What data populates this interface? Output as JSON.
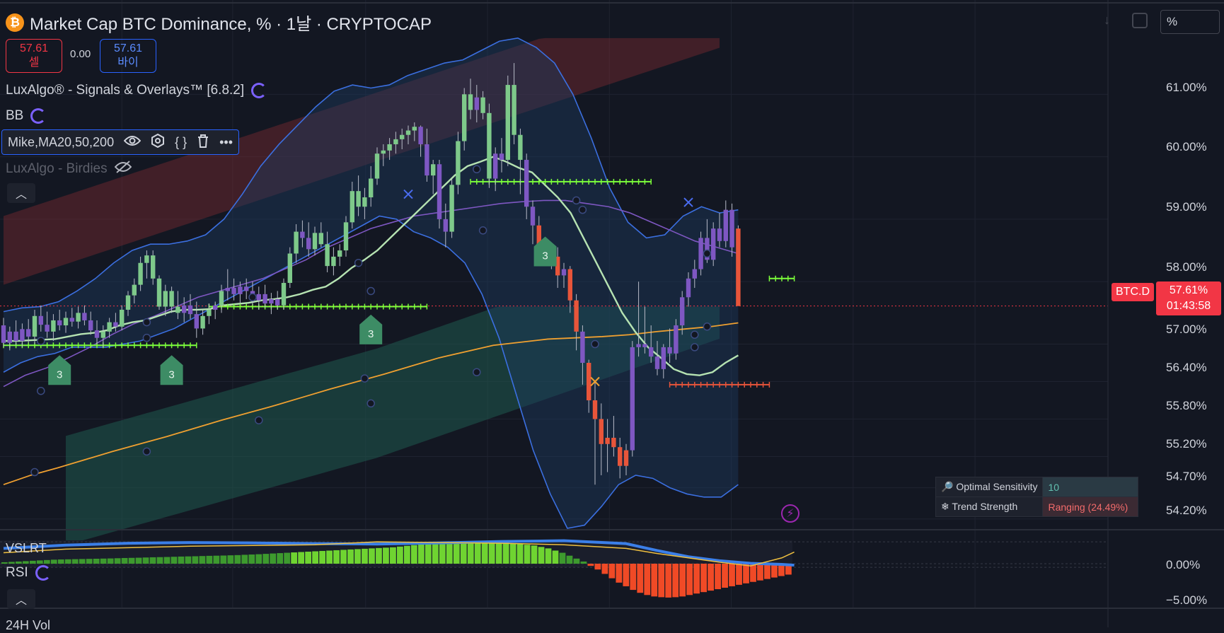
{
  "header": {
    "coin_symbol": "₿",
    "title": "Market Cap BTC Dominance, % · 1날 · CRYPTOCAP",
    "sell_price": "57.61",
    "sell_label": "셀",
    "spread": "0.00",
    "buy_price": "57.61",
    "buy_label": "바이"
  },
  "indicators": {
    "luxalgo": "LuxAlgo® - Signals & Overlays™ [6.8.2]",
    "bb": "BB",
    "mike": "Mike,MA20,50,200",
    "birdies": "LuxAlgo - Birdies"
  },
  "toolbar": {
    "scale_mode": "%"
  },
  "price_axis": {
    "labels": [
      "61.00%",
      "60.00%",
      "59.00%",
      "58.00%",
      "57.00%",
      "56.40%",
      "55.80%",
      "55.20%",
      "54.70%",
      "54.20%"
    ],
    "osc_labels": [
      "0.00%",
      "−5.00%"
    ]
  },
  "current": {
    "symbol": "BTC.D",
    "price": "57.61%",
    "countdown": "01:43:58"
  },
  "dashboard": {
    "row1_label": "Optimal Sensitivity",
    "row1_value": "10",
    "row2_label": "Trend Strength",
    "row2_value": "Ranging (24.49%)"
  },
  "lower_panes": {
    "vslrt": "VSLRT",
    "rsi": "RSI",
    "vol": "24H Vol"
  },
  "signal_label": "3",
  "colors": {
    "bull": "#7ec98a",
    "bear": "#e8553a",
    "purple": "#7e57c2",
    "ma20": "#b6e3b2",
    "ma200": "#f0a030",
    "bb": "#3b6fe0",
    "signal_cross": "#7cff3a"
  },
  "chart_data": {
    "type": "candlestick",
    "y_unit": "%",
    "ylim": [
      54.05,
      61.7
    ],
    "grid": true,
    "candles": [
      [
        57.3,
        57.42,
        56.95,
        57.02,
        "purple"
      ],
      [
        57.02,
        57.28,
        56.9,
        57.2,
        "purple"
      ],
      [
        57.2,
        57.38,
        56.98,
        57.05,
        "purple"
      ],
      [
        57.05,
        57.33,
        56.95,
        57.24,
        "purple"
      ],
      [
        57.24,
        57.4,
        57.02,
        57.12,
        "purple"
      ],
      [
        57.12,
        57.55,
        57.0,
        57.45,
        "bull"
      ],
      [
        57.45,
        57.62,
        57.2,
        57.31,
        "purple"
      ],
      [
        57.31,
        57.52,
        57.1,
        57.2,
        "purple"
      ],
      [
        57.2,
        57.48,
        57.05,
        57.38,
        "bull"
      ],
      [
        57.38,
        57.55,
        57.22,
        57.3,
        "purple"
      ],
      [
        57.3,
        57.52,
        57.18,
        57.42,
        "bull"
      ],
      [
        57.42,
        57.58,
        57.28,
        57.36,
        "purple"
      ],
      [
        57.36,
        57.6,
        57.25,
        57.5,
        "bull"
      ],
      [
        57.5,
        57.62,
        57.3,
        57.38,
        "purple"
      ],
      [
        57.38,
        57.52,
        57.15,
        57.22,
        "purple"
      ],
      [
        57.22,
        57.38,
        57.0,
        57.1,
        "purple"
      ],
      [
        57.1,
        57.3,
        56.95,
        57.2,
        "bull"
      ],
      [
        57.2,
        57.42,
        57.1,
        57.35,
        "bull"
      ],
      [
        57.35,
        57.5,
        57.2,
        57.28,
        "purple"
      ],
      [
        57.28,
        57.62,
        57.22,
        57.55,
        "bull"
      ],
      [
        57.55,
        57.85,
        57.45,
        57.78,
        "bull"
      ],
      [
        57.78,
        58.05,
        57.65,
        57.95,
        "bull"
      ],
      [
        57.95,
        58.4,
        57.85,
        58.3,
        "bull"
      ],
      [
        58.3,
        58.5,
        58.05,
        58.42,
        "bull"
      ],
      [
        58.42,
        58.5,
        57.95,
        58.05,
        "bull"
      ],
      [
        58.05,
        58.1,
        57.55,
        57.6,
        "bull"
      ],
      [
        57.6,
        57.95,
        57.45,
        57.85,
        "bull"
      ],
      [
        57.85,
        57.92,
        57.5,
        57.6,
        "bull"
      ],
      [
        57.6,
        57.85,
        57.4,
        57.5,
        "bull"
      ],
      [
        57.5,
        57.75,
        57.35,
        57.62,
        "purple"
      ],
      [
        57.62,
        57.8,
        57.4,
        57.48,
        "purple"
      ],
      [
        57.48,
        57.68,
        57.1,
        57.25,
        "purple"
      ],
      [
        57.25,
        57.55,
        57.15,
        57.45,
        "bull"
      ],
      [
        57.45,
        57.65,
        57.32,
        57.55,
        "bull"
      ],
      [
        57.55,
        57.68,
        57.4,
        57.62,
        "purple"
      ],
      [
        57.62,
        57.95,
        57.5,
        57.85,
        "bull"
      ],
      [
        57.85,
        58.2,
        57.7,
        57.9,
        "purple"
      ],
      [
        57.9,
        58.05,
        57.7,
        57.8,
        "purple"
      ],
      [
        57.8,
        58.0,
        57.65,
        57.92,
        "purple"
      ],
      [
        57.92,
        58.05,
        57.72,
        57.85,
        "purple"
      ],
      [
        57.85,
        58.0,
        57.62,
        57.7,
        "purple"
      ],
      [
        57.7,
        57.92,
        57.55,
        57.8,
        "purple"
      ],
      [
        57.8,
        57.95,
        57.58,
        57.65,
        "purple"
      ],
      [
        57.65,
        57.82,
        57.48,
        57.72,
        "purple"
      ],
      [
        57.72,
        57.85,
        57.55,
        57.62,
        "purple"
      ],
      [
        57.62,
        58.05,
        57.55,
        57.98,
        "bull"
      ],
      [
        57.98,
        58.55,
        57.9,
        58.45,
        "bull"
      ],
      [
        58.45,
        58.92,
        58.3,
        58.8,
        "bull"
      ],
      [
        58.8,
        58.98,
        58.55,
        58.7,
        "purple"
      ],
      [
        58.7,
        58.95,
        58.4,
        58.52,
        "purple"
      ],
      [
        58.52,
        58.88,
        58.42,
        58.78,
        "bull"
      ],
      [
        58.78,
        58.95,
        58.55,
        58.6,
        "bull"
      ],
      [
        58.6,
        58.8,
        58.15,
        58.25,
        "bull"
      ],
      [
        58.25,
        58.55,
        58.1,
        58.4,
        "bull"
      ],
      [
        58.4,
        58.6,
        58.25,
        58.5,
        "bull"
      ],
      [
        58.5,
        59.05,
        58.4,
        58.95,
        "bull"
      ],
      [
        58.95,
        59.6,
        58.85,
        59.45,
        "bull"
      ],
      [
        59.45,
        59.7,
        59.05,
        59.2,
        "bull"
      ],
      [
        59.2,
        59.5,
        59.0,
        59.35,
        "bull"
      ],
      [
        59.35,
        59.85,
        59.2,
        59.65,
        "bull"
      ],
      [
        59.65,
        60.15,
        59.55,
        60.05,
        "bull"
      ],
      [
        60.05,
        60.2,
        59.85,
        60.1,
        "bull"
      ],
      [
        60.1,
        60.3,
        59.95,
        60.2,
        "bull"
      ],
      [
        60.2,
        60.4,
        60.05,
        60.28,
        "bull"
      ],
      [
        60.28,
        60.45,
        60.12,
        60.35,
        "bull"
      ],
      [
        60.35,
        60.5,
        60.2,
        60.42,
        "bull"
      ],
      [
        60.42,
        60.55,
        60.25,
        60.48,
        "bull"
      ],
      [
        60.48,
        60.5,
        60.0,
        60.2,
        "purple"
      ],
      [
        60.2,
        60.45,
        59.6,
        59.7,
        "purple"
      ],
      [
        59.7,
        59.95,
        59.4,
        59.88,
        "bull"
      ],
      [
        59.88,
        59.95,
        58.85,
        59.0,
        "purple"
      ],
      [
        59.0,
        59.25,
        58.55,
        58.8,
        "purple"
      ],
      [
        58.8,
        59.65,
        58.7,
        59.55,
        "bull"
      ],
      [
        59.55,
        60.4,
        59.4,
        60.25,
        "bull"
      ],
      [
        60.25,
        61.1,
        60.1,
        61.0,
        "bull"
      ],
      [
        61.0,
        61.25,
        60.6,
        60.75,
        "bull"
      ],
      [
        60.75,
        61.15,
        60.55,
        60.95,
        "purple"
      ],
      [
        60.95,
        61.05,
        60.6,
        60.7,
        "bull"
      ],
      [
        60.7,
        60.85,
        59.5,
        59.65,
        "bull"
      ],
      [
        59.65,
        60.15,
        59.45,
        60.05,
        "purple"
      ],
      [
        60.05,
        60.3,
        59.75,
        59.95,
        "purple"
      ],
      [
        59.95,
        61.3,
        59.85,
        61.15,
        "bull"
      ],
      [
        61.15,
        61.5,
        60.2,
        60.35,
        "bull"
      ],
      [
        60.35,
        60.45,
        59.4,
        59.95,
        "bull"
      ],
      [
        59.95,
        60.05,
        59.0,
        59.2,
        "purple"
      ],
      [
        59.2,
        59.3,
        58.6,
        58.9,
        "purple"
      ],
      [
        58.9,
        59.05,
        58.3,
        58.45,
        "bear"
      ],
      [
        58.45,
        58.65,
        58.25,
        58.5,
        "bear"
      ],
      [
        58.5,
        58.6,
        58.2,
        58.4,
        "bear"
      ],
      [
        58.4,
        58.55,
        57.9,
        58.1,
        "bear"
      ],
      [
        58.1,
        58.3,
        57.9,
        58.2,
        "purple"
      ],
      [
        58.2,
        58.25,
        57.5,
        57.7,
        "bear"
      ],
      [
        57.7,
        57.8,
        56.9,
        57.2,
        "bear"
      ],
      [
        57.2,
        57.3,
        56.35,
        56.7,
        "purple"
      ],
      [
        56.7,
        56.75,
        55.9,
        56.1,
        "bear"
      ],
      [
        56.1,
        56.4,
        54.75,
        55.8,
        "bear"
      ],
      [
        55.8,
        56.05,
        54.9,
        55.4,
        "bear"
      ],
      [
        55.4,
        55.8,
        54.95,
        55.5,
        "bear"
      ],
      [
        55.5,
        55.85,
        55.2,
        55.35,
        "bear"
      ],
      [
        55.35,
        55.5,
        54.85,
        55.05,
        "bear"
      ],
      [
        55.05,
        55.4,
        54.9,
        55.3,
        "bear"
      ],
      [
        55.3,
        57.05,
        55.2,
        56.95,
        "purple"
      ],
      [
        56.95,
        58.0,
        56.8,
        57.0,
        "purple"
      ],
      [
        57.0,
        57.6,
        56.85,
        56.95,
        "purple"
      ],
      [
        56.95,
        57.3,
        56.7,
        56.8,
        "purple"
      ],
      [
        56.8,
        57.05,
        56.5,
        56.6,
        "purple"
      ],
      [
        56.6,
        57.0,
        56.45,
        56.95,
        "purple"
      ],
      [
        56.95,
        57.25,
        56.7,
        56.85,
        "purple"
      ],
      [
        56.85,
        57.4,
        56.75,
        57.3,
        "purple"
      ],
      [
        57.3,
        57.85,
        57.15,
        57.75,
        "purple"
      ],
      [
        57.75,
        58.15,
        57.6,
        58.05,
        "purple"
      ],
      [
        58.05,
        58.35,
        57.9,
        58.2,
        "purple"
      ],
      [
        58.2,
        58.8,
        58.1,
        58.7,
        "purple"
      ],
      [
        58.7,
        59.0,
        58.3,
        58.35,
        "purple"
      ],
      [
        58.35,
        58.95,
        58.25,
        58.85,
        "purple"
      ],
      [
        58.85,
        59.1,
        58.55,
        58.65,
        "purple"
      ],
      [
        58.65,
        59.3,
        58.55,
        59.15,
        "purple"
      ],
      [
        59.15,
        59.25,
        58.4,
        58.55,
        "purple"
      ],
      [
        58.85,
        58.9,
        57.61,
        57.61,
        "bear"
      ]
    ],
    "ma20": [
      57.05,
      57.05,
      57.06,
      57.07,
      57.08,
      57.12,
      57.16,
      57.18,
      57.22,
      57.3,
      57.35,
      57.38,
      57.45,
      57.52,
      57.55,
      57.55,
      57.56,
      57.62,
      57.64,
      57.66,
      57.7,
      57.72,
      57.75,
      57.8,
      57.87,
      57.92,
      58.05,
      58.22,
      58.35,
      58.5,
      58.7,
      58.9,
      59.1,
      59.3,
      59.5,
      59.7,
      59.85,
      59.92,
      60.0,
      59.92,
      59.82,
      59.75,
      59.55,
      59.35,
      59.1,
      58.7,
      58.3,
      57.9,
      57.5,
      57.2,
      56.95,
      56.78,
      56.6,
      56.52,
      56.5,
      56.55,
      56.7,
      56.82
    ],
    "ma50": [
      56.32,
      56.5,
      56.62,
      56.78,
      56.95,
      57.15,
      57.32,
      57.45,
      57.6,
      57.75,
      57.85,
      57.95,
      58.05,
      58.2,
      58.35,
      58.55,
      58.7,
      58.85,
      58.95,
      59.05,
      59.1,
      59.15,
      59.2,
      59.25,
      59.28,
      59.3,
      59.3,
      59.25,
      59.2,
      59.1,
      58.95,
      58.8,
      58.65,
      58.55,
      58.45
    ],
    "ma200": [
      54.75,
      54.9,
      55.02,
      55.15,
      55.28,
      55.4,
      55.52,
      55.65,
      55.78,
      55.9,
      56.02,
      56.15,
      56.28,
      56.4,
      56.52,
      56.65,
      56.78,
      56.88,
      56.98,
      57.03,
      57.08,
      57.1,
      57.12,
      57.15,
      57.2,
      57.24,
      57.28,
      57.34
    ],
    "bb_upper": [
      57.52,
      57.58,
      57.6,
      57.68,
      57.85,
      58.05,
      58.3,
      58.5,
      58.6,
      58.6,
      58.65,
      58.75,
      59.0,
      59.4,
      59.85,
      60.2,
      60.5,
      60.8,
      61.05,
      61.15,
      61.1,
      61.15,
      61.3,
      61.4,
      61.5,
      61.55,
      61.7,
      61.85,
      61.9,
      61.75,
      61.5,
      61.0,
      60.3,
      59.5,
      58.95,
      58.7,
      58.75,
      59.05,
      59.2,
      59.1,
      59.15
    ],
    "bb_lower": [
      56.55,
      56.7,
      56.8,
      56.85,
      56.95,
      56.95,
      56.95,
      57.0,
      57.05,
      57.15,
      57.25,
      57.4,
      57.55,
      57.7,
      57.85,
      58.0,
      58.15,
      58.3,
      58.45,
      58.6,
      58.75,
      58.9,
      59.05,
      59.0,
      58.8,
      58.7,
      58.55,
      58.3,
      57.8,
      57.1,
      56.2,
      55.3,
      54.6,
      54.05,
      54.1,
      54.4,
      54.75,
      54.9,
      54.85,
      54.7,
      54.6,
      54.55,
      54.55,
      54.75
    ],
    "sr_levels": [
      {
        "kind": "support",
        "value": 56.98,
        "x_from": 0,
        "x_to": 31
      },
      {
        "kind": "support",
        "value": 57.6,
        "x_from": 33,
        "x_to": 68
      },
      {
        "kind": "support",
        "value": 59.6,
        "x_from": 75,
        "x_to": 104
      },
      {
        "kind": "resistance",
        "value": 56.35,
        "x_from": 107,
        "x_to": 123
      },
      {
        "kind": "support",
        "value": 58.05,
        "x_from": 123,
        "x_to": 127
      }
    ],
    "signals": [
      {
        "bar": 9,
        "price": 56.55
      },
      {
        "bar": 27,
        "price": 56.55
      },
      {
        "bar": 59,
        "price": 57.2
      },
      {
        "bar": 87,
        "price": 58.45
      }
    ],
    "oscillator": {
      "ylim": [
        -5.6,
        3.2
      ],
      "histogram": [
        0.2,
        0.25,
        0.3,
        0.35,
        0.4,
        0.45,
        0.5,
        0.55,
        0.58,
        0.6,
        0.62,
        0.64,
        0.66,
        0.68,
        0.7,
        0.72,
        0.75,
        0.78,
        0.8,
        0.82,
        0.85,
        0.88,
        0.9,
        0.92,
        0.95,
        0.98,
        1.0,
        1.02,
        1.05,
        1.08,
        1.1,
        1.12,
        1.15,
        1.18,
        1.22,
        1.26,
        1.3,
        1.35,
        1.4,
        1.45,
        1.5,
        1.55,
        1.6,
        1.65,
        1.7,
        1.75,
        1.8,
        1.85,
        1.9,
        1.95,
        2.0,
        2.05,
        2.1,
        2.15,
        2.2,
        2.25,
        2.35,
        2.45,
        2.55,
        2.65,
        2.75,
        2.85,
        2.95,
        3.0,
        3.05,
        3.08,
        3.1,
        3.1,
        3.08,
        3.05,
        3.0,
        2.9,
        2.8,
        2.7,
        2.6,
        2.5,
        2.3,
        2.1,
        1.8,
        1.5,
        1.1,
        0.7,
        0.3,
        -0.3,
        -0.8,
        -1.4,
        -2.0,
        -2.6,
        -3.1,
        -3.6,
        -4.0,
        -4.3,
        -4.5,
        -4.6,
        -4.65,
        -4.6,
        -4.5,
        -4.3,
        -4.1,
        -3.9,
        -3.7,
        -3.5,
        -3.3,
        -3.1,
        -2.9,
        -2.7,
        -2.5,
        -2.3,
        -2.1,
        -1.9,
        -1.7,
        -1.5
      ],
      "x": [
        0,
        10,
        20,
        30,
        40,
        50,
        60,
        70,
        80,
        90,
        100,
        105,
        110,
        115,
        120,
        125,
        127
      ],
      "blue_line": [
        2.1,
        2.55,
        2.8,
        2.9,
        2.85,
        2.75,
        2.7,
        2.85,
        3.05,
        3.15,
        2.75,
        1.8,
        0.95,
        0.4,
        0.05,
        -0.1,
        -0.2
      ],
      "yellow_line": [
        1.5,
        2.0,
        2.2,
        2.4,
        2.5,
        2.6,
        3.0,
        2.9,
        2.8,
        2.6,
        2.1,
        1.4,
        0.8,
        0.2,
        -0.3,
        0.8,
        1.6
      ]
    }
  }
}
